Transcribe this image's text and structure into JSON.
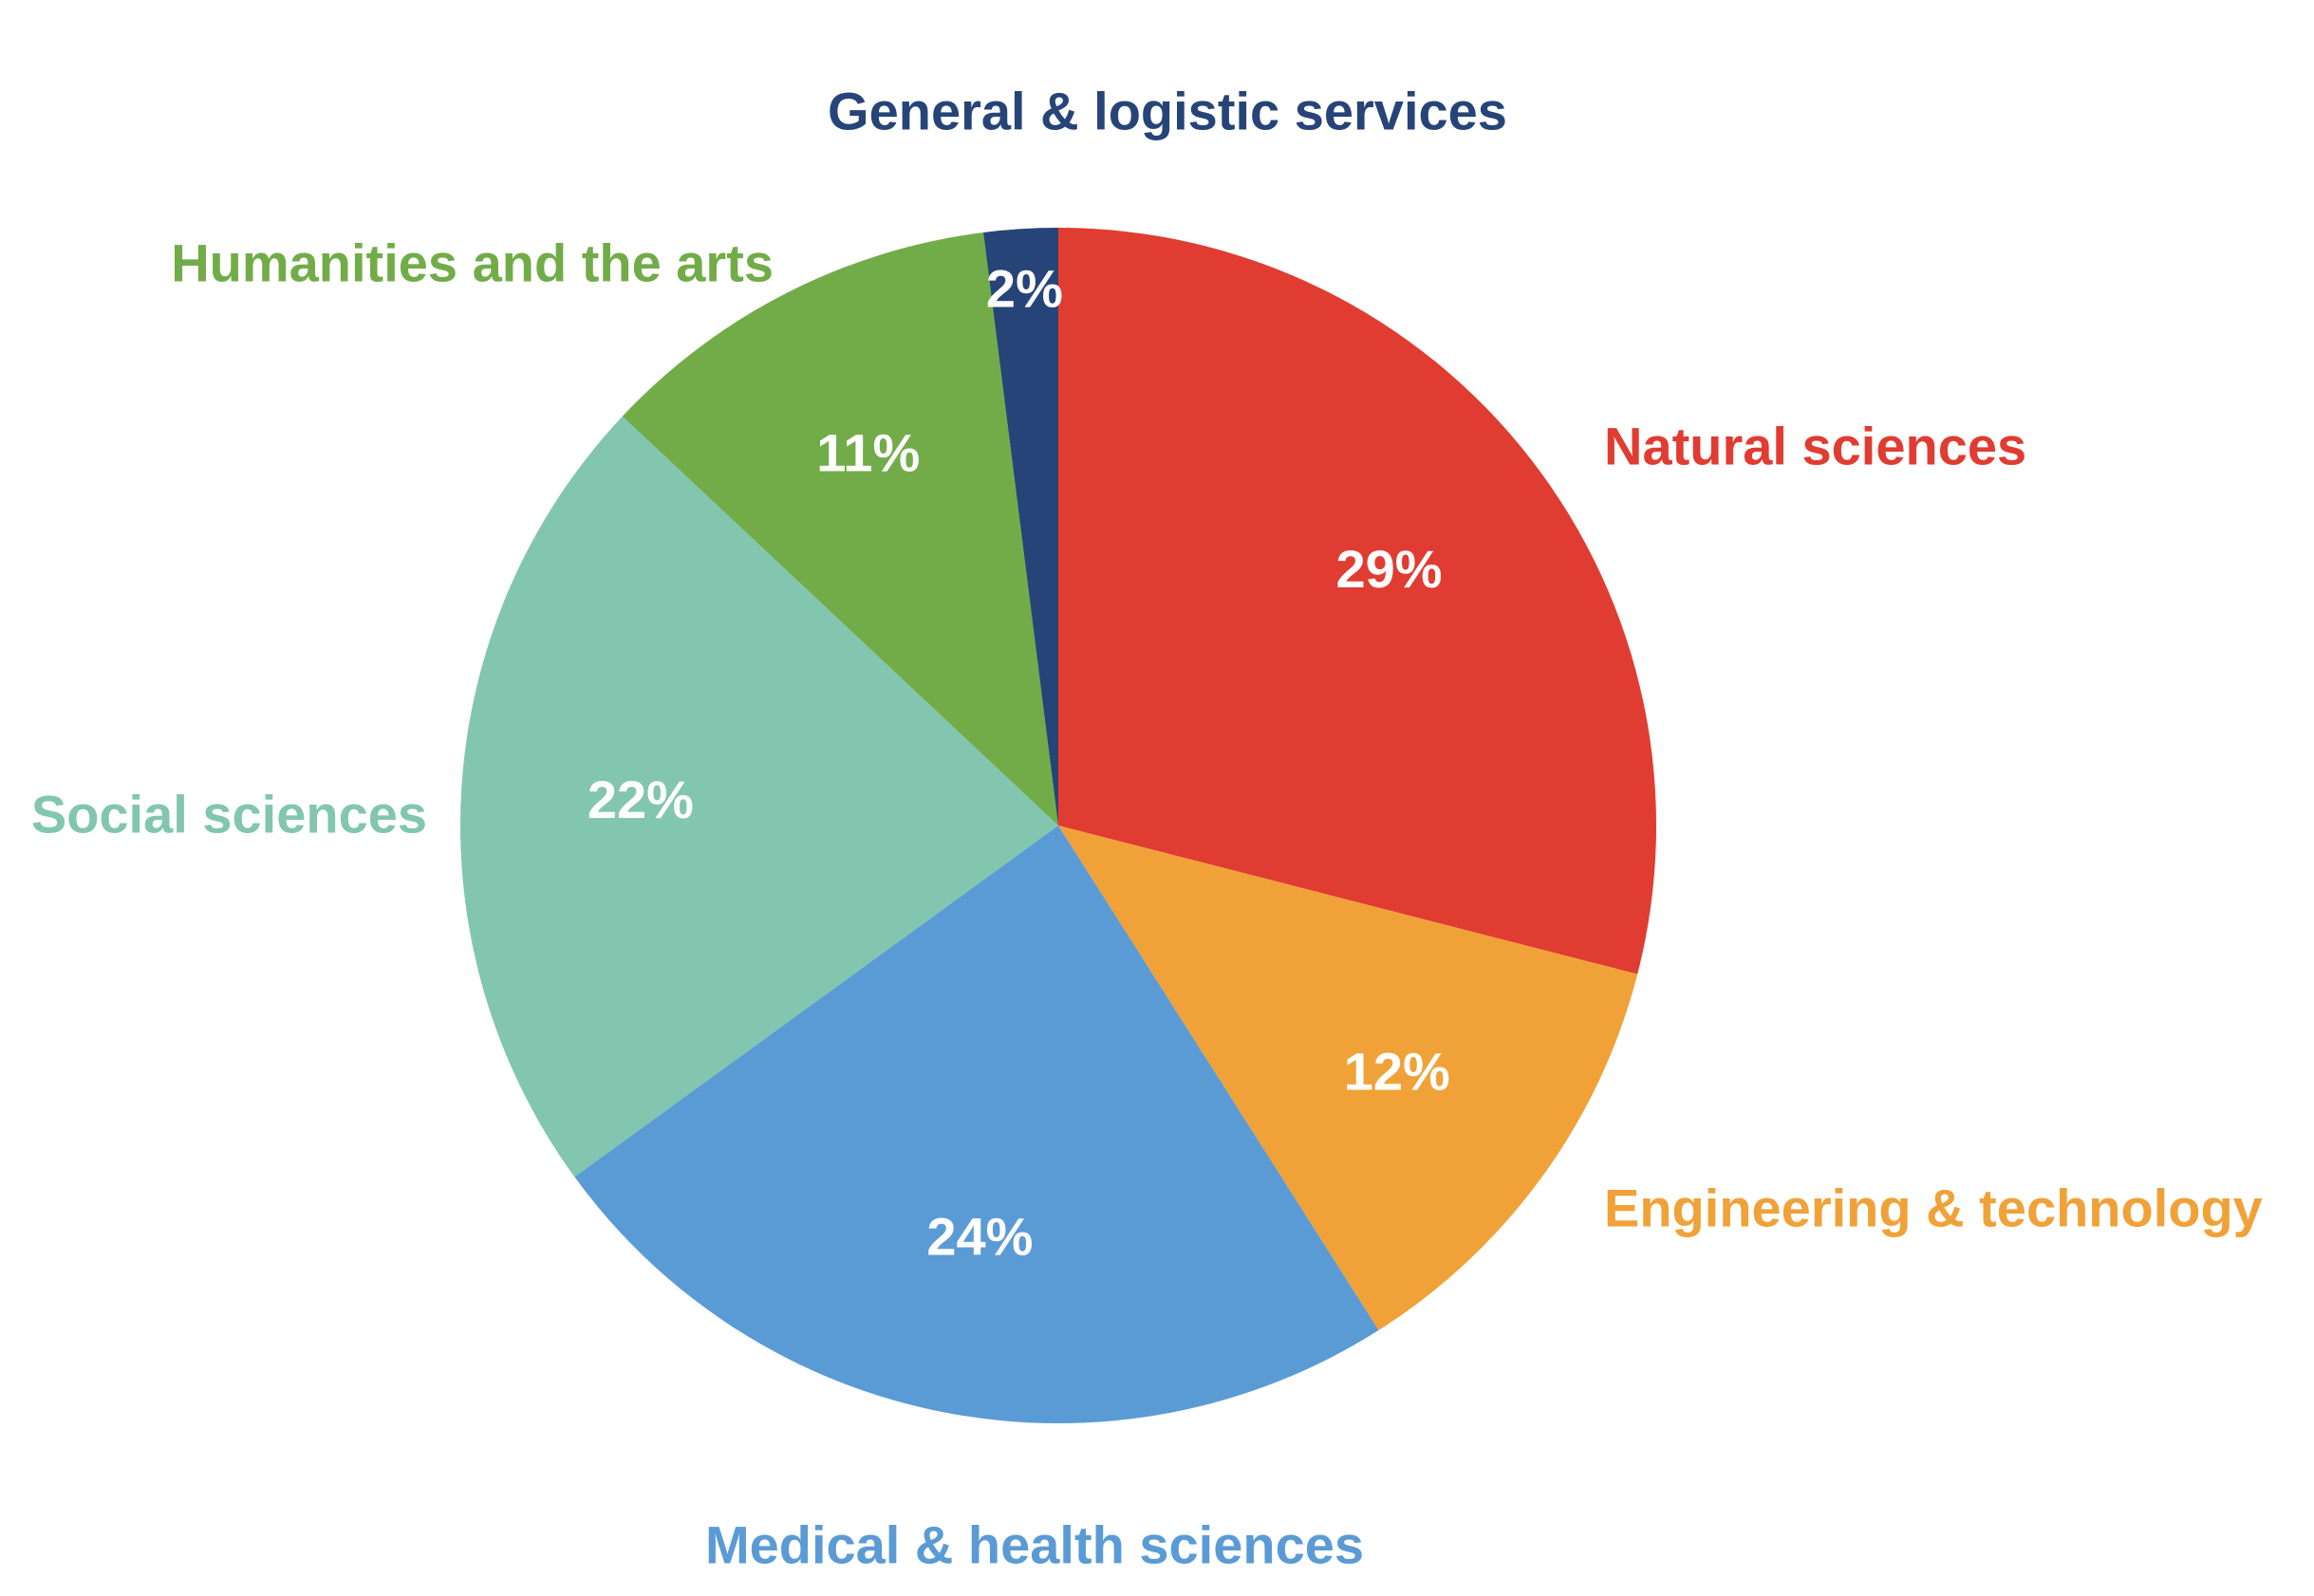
{
  "chart_data": {
    "type": "pie",
    "title": "",
    "start_angle_deg": 0,
    "direction": "clockwise",
    "slices": [
      {
        "label": "Natural sciences",
        "value": 29,
        "value_label": "29%",
        "color": "#E03C31",
        "label_side": "right"
      },
      {
        "label": "Engineering & technology",
        "value": 12,
        "value_label": "12%",
        "color": "#F0A238",
        "label_side": "right"
      },
      {
        "label": "Medical & health sciences",
        "value": 24,
        "value_label": "24%",
        "color": "#5B9BD5",
        "label_side": "bottom"
      },
      {
        "label": "Social sciences",
        "value": 22,
        "value_label": "22%",
        "color": "#82C6B0",
        "label_side": "left"
      },
      {
        "label": "Humanities and the arts",
        "value": 11,
        "value_label": "11%",
        "color": "#72AC48",
        "label_side": "left"
      },
      {
        "label": "General & logistic services",
        "value": 2,
        "value_label": "2%",
        "color": "#264478",
        "label_side": "top"
      }
    ]
  }
}
